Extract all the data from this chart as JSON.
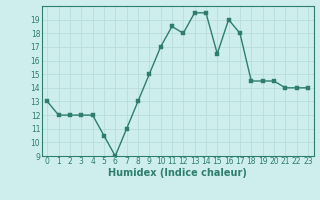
{
  "x": [
    0,
    1,
    2,
    3,
    4,
    5,
    6,
    7,
    8,
    9,
    10,
    11,
    12,
    13,
    14,
    15,
    16,
    17,
    18,
    19,
    20,
    21,
    22,
    23
  ],
  "y": [
    13,
    12,
    12,
    12,
    12,
    10.5,
    9,
    11,
    13,
    15,
    17,
    18.5,
    18,
    19.5,
    19.5,
    16.5,
    19,
    18,
    14.5,
    14.5,
    14.5,
    14,
    14,
    14
  ],
  "line_color": "#2e7d6e",
  "marker_color": "#2e7d6e",
  "bg_color": "#ceeeed",
  "grid_major_color": "#b8dcdc",
  "grid_minor_color": "#c8eaea",
  "xlabel": "Humidex (Indice chaleur)",
  "ylim": [
    9,
    20
  ],
  "xlim": [
    -0.5,
    23.5
  ],
  "yticks": [
    9,
    10,
    11,
    12,
    13,
    14,
    15,
    16,
    17,
    18,
    19
  ],
  "xticks": [
    0,
    1,
    2,
    3,
    4,
    5,
    6,
    7,
    8,
    9,
    10,
    11,
    12,
    13,
    14,
    15,
    16,
    17,
    18,
    19,
    20,
    21,
    22,
    23
  ],
  "tick_label_fontsize": 5.5,
  "xlabel_fontsize": 7,
  "line_width": 1.0,
  "marker_size": 2.5,
  "spine_color": "#2e7d6e"
}
